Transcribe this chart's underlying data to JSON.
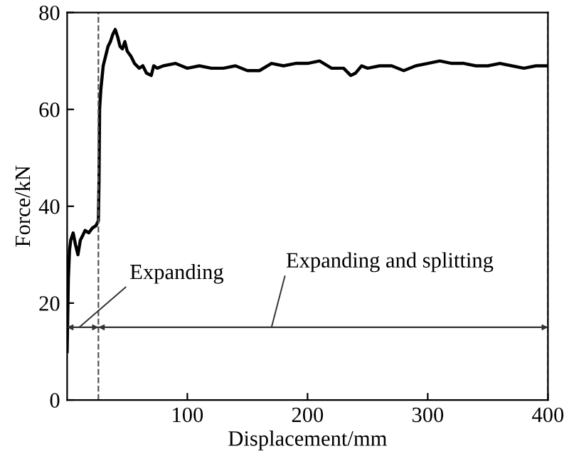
{
  "chart_data": {
    "type": "line",
    "xlabel": "Displacement/mm",
    "ylabel": "Force/kN",
    "x": [
      0,
      1,
      2,
      3,
      5,
      7,
      9,
      11,
      13,
      15,
      18,
      21,
      24,
      26,
      26.5,
      27,
      28,
      30,
      32,
      34,
      36,
      38,
      40,
      42,
      44,
      46,
      48,
      50,
      53,
      56,
      60,
      63,
      66,
      70,
      72,
      75,
      80,
      90,
      100,
      110,
      120,
      130,
      140,
      150,
      160,
      170,
      180,
      190,
      200,
      210,
      220,
      230,
      236,
      240,
      245,
      250,
      260,
      270,
      280,
      290,
      300,
      310,
      320,
      330,
      340,
      350,
      360,
      370,
      380,
      390,
      400
    ],
    "series": [
      {
        "color": "#000000",
        "values": [
          10,
          25,
          31,
          33,
          34.5,
          32,
          30,
          33,
          34,
          35,
          34.5,
          35.5,
          36,
          37,
          45,
          60,
          64,
          69,
          71,
          73,
          74,
          75.5,
          76.5,
          75,
          73,
          72.5,
          74,
          72,
          71,
          69.5,
          68.5,
          69,
          67.5,
          67,
          69,
          68.5,
          69,
          69.5,
          68.5,
          69,
          68.5,
          68.5,
          69,
          68,
          68,
          69.5,
          69,
          69.5,
          69.5,
          70,
          68.5,
          68.5,
          67,
          67.5,
          69,
          68.5,
          69,
          69,
          68,
          69,
          69.5,
          70,
          69.5,
          69.5,
          69,
          69,
          69.5,
          69,
          68.5,
          69,
          69
        ]
      }
    ],
    "xlim": [
      0,
      400
    ],
    "ylim": [
      0,
      80
    ],
    "xticks": [
      100,
      200,
      300,
      400
    ],
    "yticks": [
      0,
      20,
      40,
      60,
      80
    ],
    "ref_lines": [
      {
        "axis": "x",
        "value": 26,
        "line_style": "dashed"
      },
      {
        "axis": "x",
        "value": 400,
        "line_style": "dashed"
      },
      {
        "axis": "y",
        "value": 15,
        "line_style": "solid"
      }
    ],
    "annotations": [
      {
        "text": "Expanding",
        "x": 10,
        "y": 15
      },
      {
        "text": "Expanding and splitting",
        "x": 170,
        "y": 15
      }
    ],
    "grid": false,
    "marker": "none",
    "line_style": "solid"
  }
}
